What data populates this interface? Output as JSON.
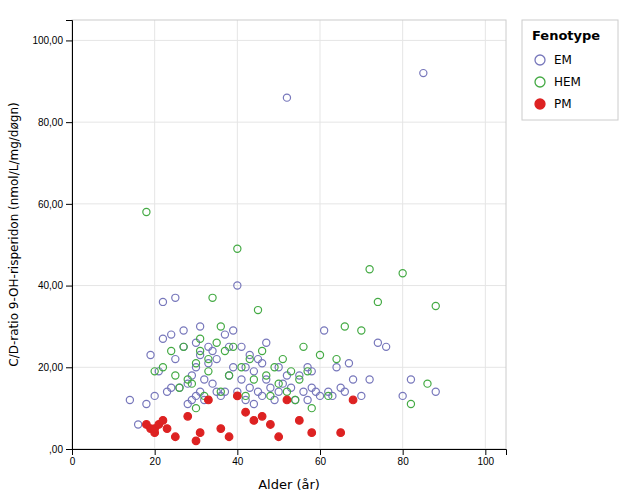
{
  "chart_data": {
    "type": "scatter",
    "xlabel": "Alder (år)",
    "ylabel": "C/D-ratio 9-OH-risperidon (nmol/L/mg/døgn)",
    "xlim": [
      0,
      105
    ],
    "ylim": [
      0,
      105
    ],
    "xticks": [
      0,
      20,
      40,
      60,
      80,
      100
    ],
    "yticks": [
      {
        "value": 0,
        "label": ",00"
      },
      {
        "value": 20,
        "label": "20,00"
      },
      {
        "value": 40,
        "label": "40,00"
      },
      {
        "value": 60,
        "label": "60,00"
      },
      {
        "value": 80,
        "label": "80,00"
      },
      {
        "value": 100,
        "label": "100,00"
      }
    ],
    "grid": true,
    "legend": "right",
    "legend_title": "Fenotype",
    "series": [
      {
        "name": "EM",
        "color": "#7777bb",
        "marker": "open-circle",
        "x": [
          14,
          16,
          18,
          19,
          20,
          21,
          22,
          22,
          23,
          24,
          24,
          25,
          25,
          26,
          27,
          27,
          28,
          28,
          29,
          29,
          30,
          30,
          30,
          31,
          31,
          31,
          32,
          32,
          33,
          33,
          34,
          34,
          35,
          35,
          36,
          37,
          37,
          38,
          38,
          39,
          39,
          40,
          40,
          41,
          41,
          42,
          42,
          43,
          43,
          44,
          44,
          45,
          45,
          46,
          46,
          47,
          47,
          48,
          49,
          50,
          50,
          51,
          52,
          52,
          53,
          54,
          55,
          56,
          57,
          57,
          58,
          58,
          59,
          60,
          61,
          62,
          63,
          64,
          65,
          66,
          67,
          68,
          70,
          72,
          74,
          76,
          80,
          82,
          85,
          88
        ],
        "values": [
          12,
          6,
          11,
          23,
          13,
          19,
          27,
          36,
          14,
          15,
          28,
          22,
          37,
          15,
          25,
          29,
          11,
          16,
          12,
          18,
          13,
          20,
          26,
          14,
          23,
          30,
          12,
          17,
          21,
          25,
          16,
          24,
          14,
          22,
          13,
          14,
          28,
          18,
          25,
          20,
          29,
          14,
          40,
          17,
          25,
          12,
          20,
          15,
          23,
          11,
          19,
          14,
          22,
          13,
          21,
          17,
          26,
          15,
          12,
          14,
          20,
          16,
          18,
          86,
          15,
          12,
          18,
          14,
          20,
          12,
          15,
          19,
          14,
          13,
          29,
          14,
          13,
          20,
          15,
          14,
          21,
          17,
          13,
          17,
          26,
          25,
          13,
          17,
          92,
          14
        ]
      },
      {
        "name": "HEM",
        "color": "#44aa44",
        "marker": "open-circle",
        "x": [
          18,
          20,
          22,
          24,
          25,
          26,
          27,
          28,
          29,
          30,
          30,
          31,
          31,
          32,
          33,
          33,
          34,
          35,
          36,
          36,
          37,
          38,
          39,
          40,
          41,
          42,
          43,
          44,
          45,
          46,
          47,
          48,
          49,
          50,
          51,
          52,
          53,
          54,
          55,
          56,
          57,
          58,
          60,
          62,
          64,
          66,
          70,
          72,
          74,
          80,
          82,
          86,
          88
        ],
        "values": [
          58,
          19,
          20,
          24,
          18,
          15,
          25,
          17,
          16,
          10,
          21,
          27,
          24,
          13,
          19,
          22,
          37,
          26,
          30,
          14,
          24,
          18,
          25,
          49,
          20,
          13,
          22,
          17,
          34,
          24,
          18,
          13,
          20,
          16,
          22,
          14,
          19,
          12,
          17,
          25,
          19,
          10,
          23,
          13,
          22,
          30,
          29,
          44,
          36,
          43,
          11,
          16,
          35
        ]
      },
      {
        "name": "PM",
        "color": "#dd2222",
        "marker": "circle",
        "x": [
          18,
          19,
          20,
          20,
          21,
          22,
          23,
          25,
          28,
          30,
          31,
          33,
          36,
          38,
          40,
          42,
          44,
          46,
          48,
          50,
          52,
          55,
          58,
          65,
          68
        ],
        "values": [
          6,
          5,
          4,
          5,
          6,
          7,
          5,
          3,
          8,
          2,
          4,
          12,
          5,
          3,
          13,
          9,
          7,
          8,
          6,
          3,
          12,
          7,
          4,
          4,
          12
        ]
      }
    ]
  }
}
